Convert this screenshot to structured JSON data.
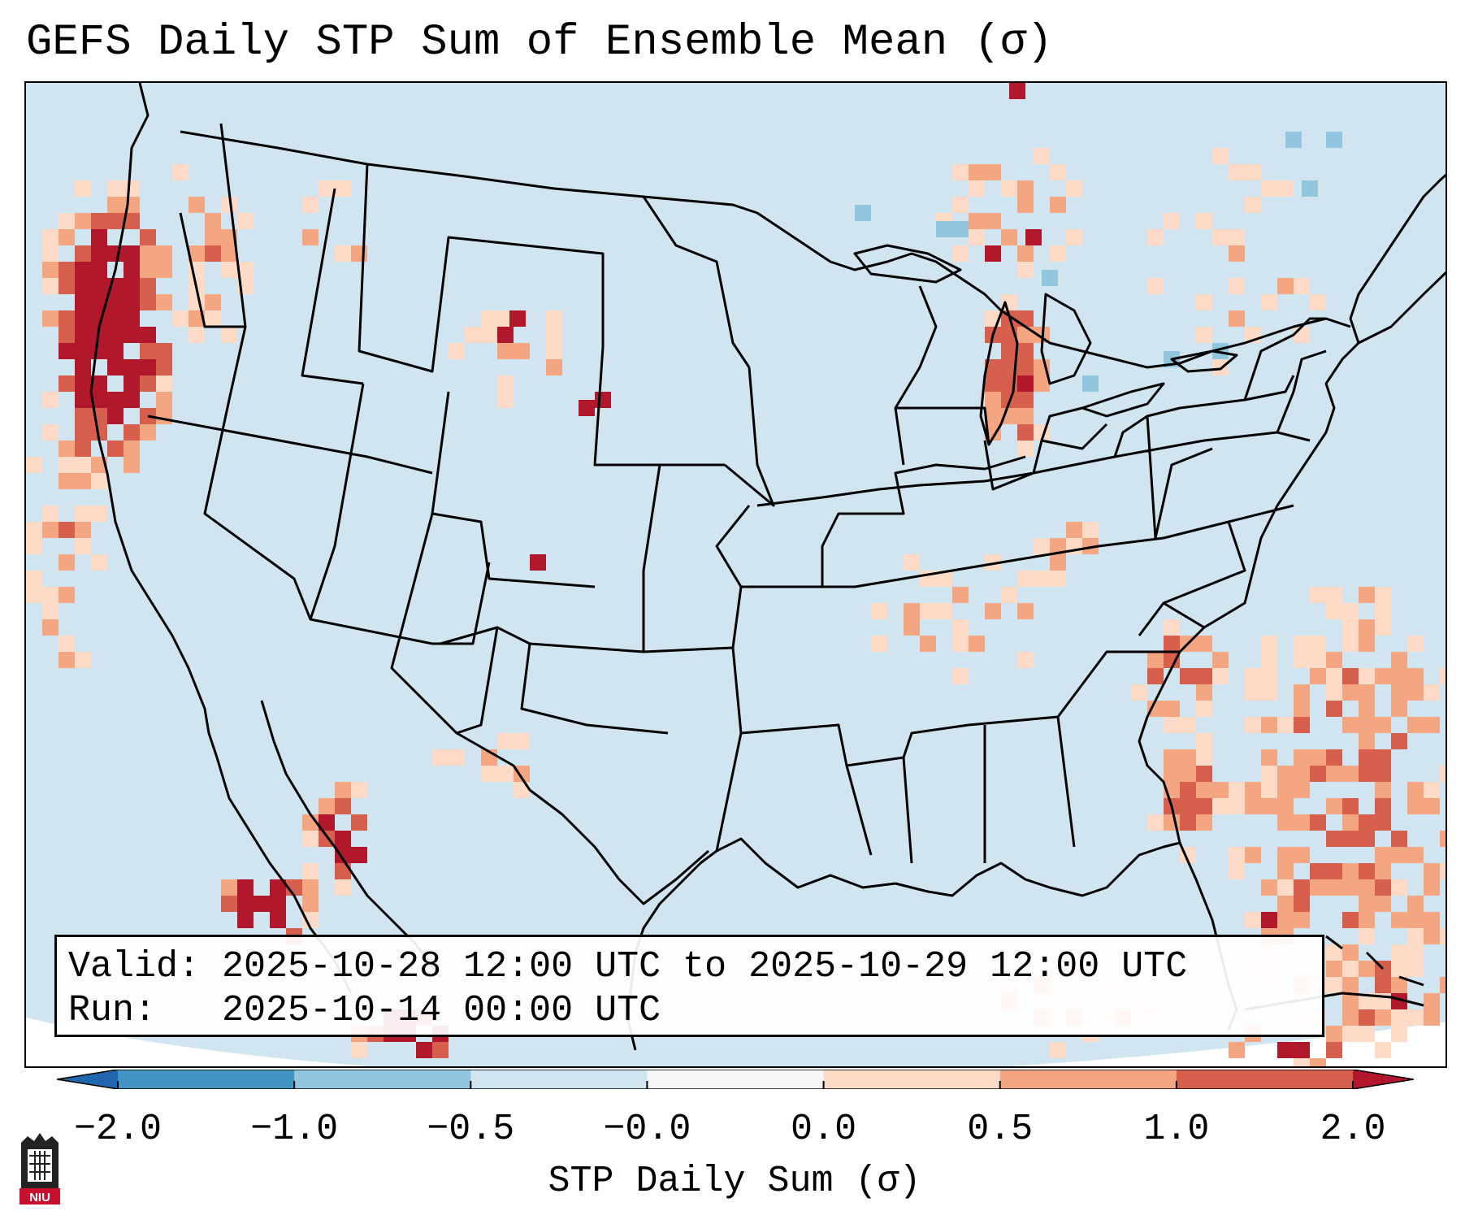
{
  "title": "GEFS Daily STP Sum of Ensemble Mean (σ)",
  "info": {
    "valid_line": "Valid: 2025-10-28 12:00 UTC to 2025-10-29 12:00 UTC",
    "run_line": "Run:   2025-10-14 00:00 UTC"
  },
  "colorbar": {
    "label": "STP Daily Sum (σ)",
    "tick_labels": [
      "−2.0",
      "−1.0",
      "−0.5",
      "−0.0",
      "0.0",
      "0.5",
      "1.0",
      "2.0"
    ],
    "bins": [
      {
        "range": "< -2.0",
        "color": "#2166ac"
      },
      {
        "range": "-2.0 to -1.0",
        "color": "#4393c3"
      },
      {
        "range": "-1.0 to -0.5",
        "color": "#92c5de"
      },
      {
        "range": "-0.5 to -0.0",
        "color": "#d1e5f0"
      },
      {
        "range": "-0.0 to 0.0",
        "color": "#f7f7f7"
      },
      {
        "range": "0.0 to 0.5",
        "color": "#fddbc7"
      },
      {
        "range": "0.5 to 1.0",
        "color": "#f4a582"
      },
      {
        "range": "1.0 to 2.0",
        "color": "#d6604d"
      },
      {
        "range": "> 2.0",
        "color": "#b2182b"
      }
    ]
  },
  "map": {
    "region": "CONUS",
    "background_color": "#d1e5f0",
    "projection_edge_color": "#ffffff"
  },
  "logo": {
    "text": "NIU",
    "color": "#c8102e"
  }
}
